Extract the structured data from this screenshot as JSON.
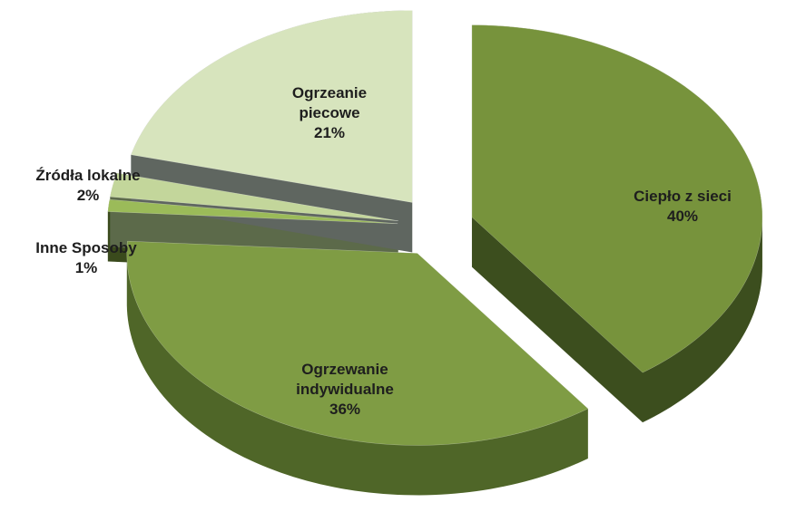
{
  "chart_data": {
    "type": "pie",
    "categories": [
      "Ciepło z sieci",
      "Ogrzewanie indywidualne",
      "Inne Sposoby",
      "Źródła lokalne",
      "Ogrzeanie piecowe"
    ],
    "values": [
      40,
      36,
      1,
      2,
      21
    ],
    "value_labels": [
      "40%",
      "36%",
      "1%",
      "2%",
      "21%"
    ],
    "colors": [
      "#77933c",
      "#7f9c44",
      "#9bbb59",
      "#c3d69b",
      "#d7e4bd"
    ],
    "side_colors": [
      "#3c4e1e",
      "#4f6628",
      "#3a4a1c",
      "#5c6a4a",
      "#5f6660"
    ]
  }
}
